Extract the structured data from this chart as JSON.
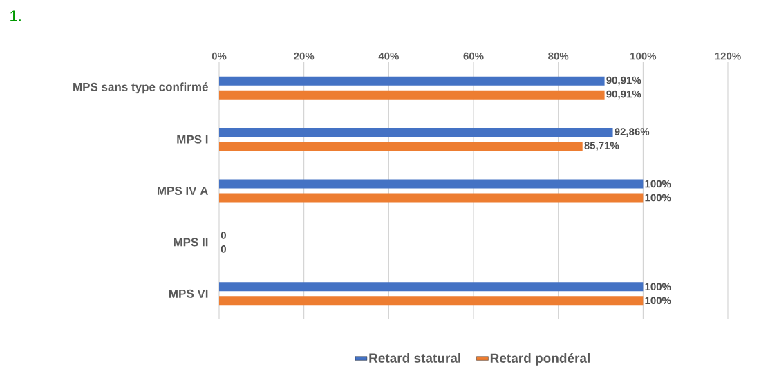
{
  "chart_data": {
    "type": "bar",
    "orientation": "horizontal",
    "annotations": [
      "1."
    ],
    "categories": [
      "MPS sans type confirmé",
      "MPS I",
      "MPS IV A",
      "MPS II",
      "MPS VI"
    ],
    "series": [
      {
        "name": "Retard statural",
        "color": "#4472c4",
        "values": [
          90.91,
          92.86,
          100,
          0,
          100
        ],
        "value_labels": [
          "90,91%",
          "92,86%",
          "100%",
          "0",
          "100%"
        ]
      },
      {
        "name": "Retard pondéral",
        "color": "#ed7d31",
        "values": [
          90.91,
          85.71,
          100,
          0,
          100
        ],
        "value_labels": [
          "90,91%",
          "85,71%",
          "100%",
          "0",
          "100%"
        ]
      }
    ],
    "xlim": [
      0,
      120
    ],
    "xticks": [
      {
        "value": 0,
        "label": "0%"
      },
      {
        "value": 20,
        "label": "20%"
      },
      {
        "value": 40,
        "label": "40%"
      },
      {
        "value": 60,
        "label": "60%"
      },
      {
        "value": 80,
        "label": "80%"
      },
      {
        "value": 100,
        "label": "100%"
      },
      {
        "value": 120,
        "label": "120%"
      }
    ],
    "grid": "x",
    "legend": "bottom"
  }
}
